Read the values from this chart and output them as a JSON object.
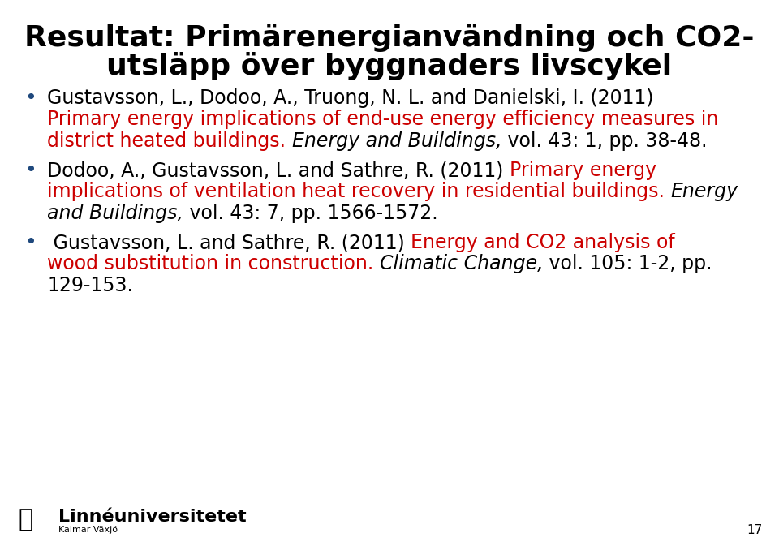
{
  "title_line1": "Resultat: Primärenergianvändning och CO2-",
  "title_line2": "utsläpp över byggnaders livscykel",
  "background_color": "#ffffff",
  "title_color": "#000000",
  "title_fontsize": 26,
  "bullet_color": "#1f497d",
  "text_color": "#000000",
  "red_color": "#cc0000",
  "body_fontsize": 17,
  "footer_university": "Linnéuniversitetet",
  "footer_subtitle": "Kalmar Växjö",
  "page_number": "17",
  "footer_fontsize": 15
}
